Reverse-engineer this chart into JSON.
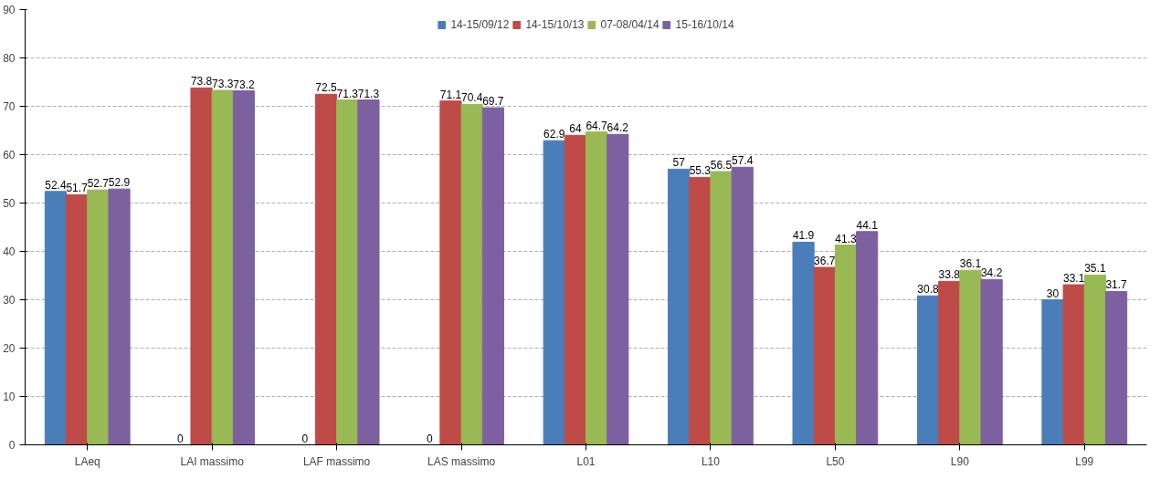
{
  "chart_data": {
    "type": "bar",
    "categories": [
      "LAeq",
      "LAI massimo",
      "LAF massimo",
      "LAS massimo",
      "L01",
      "L10",
      "L50",
      "L90",
      "L99"
    ],
    "series": [
      {
        "name": "14-15/09/12",
        "color": "#4a7ebb",
        "values": [
          52.4,
          0,
          0,
          0,
          62.9,
          57,
          41.9,
          30.8,
          30
        ]
      },
      {
        "name": "14-15/10/13",
        "color": "#be4b48",
        "values": [
          51.7,
          73.8,
          72.5,
          71.1,
          64,
          55.3,
          36.7,
          33.8,
          33.1
        ]
      },
      {
        "name": "07-08/04/14",
        "color": "#98b954",
        "values": [
          52.7,
          73.3,
          71.3,
          70.4,
          64.7,
          56.5,
          41.3,
          36.1,
          35.1
        ]
      },
      {
        "name": "15-16/10/14",
        "color": "#7d60a0",
        "values": [
          52.9,
          73.2,
          71.3,
          69.7,
          64.2,
          57.4,
          44.1,
          34.2,
          31.7
        ]
      }
    ],
    "ylim": [
      0,
      90
    ],
    "yticks": [
      0,
      10,
      20,
      30,
      40,
      50,
      60,
      70,
      80,
      90
    ],
    "grid": "y",
    "legend": "top",
    "data_labels": true
  }
}
